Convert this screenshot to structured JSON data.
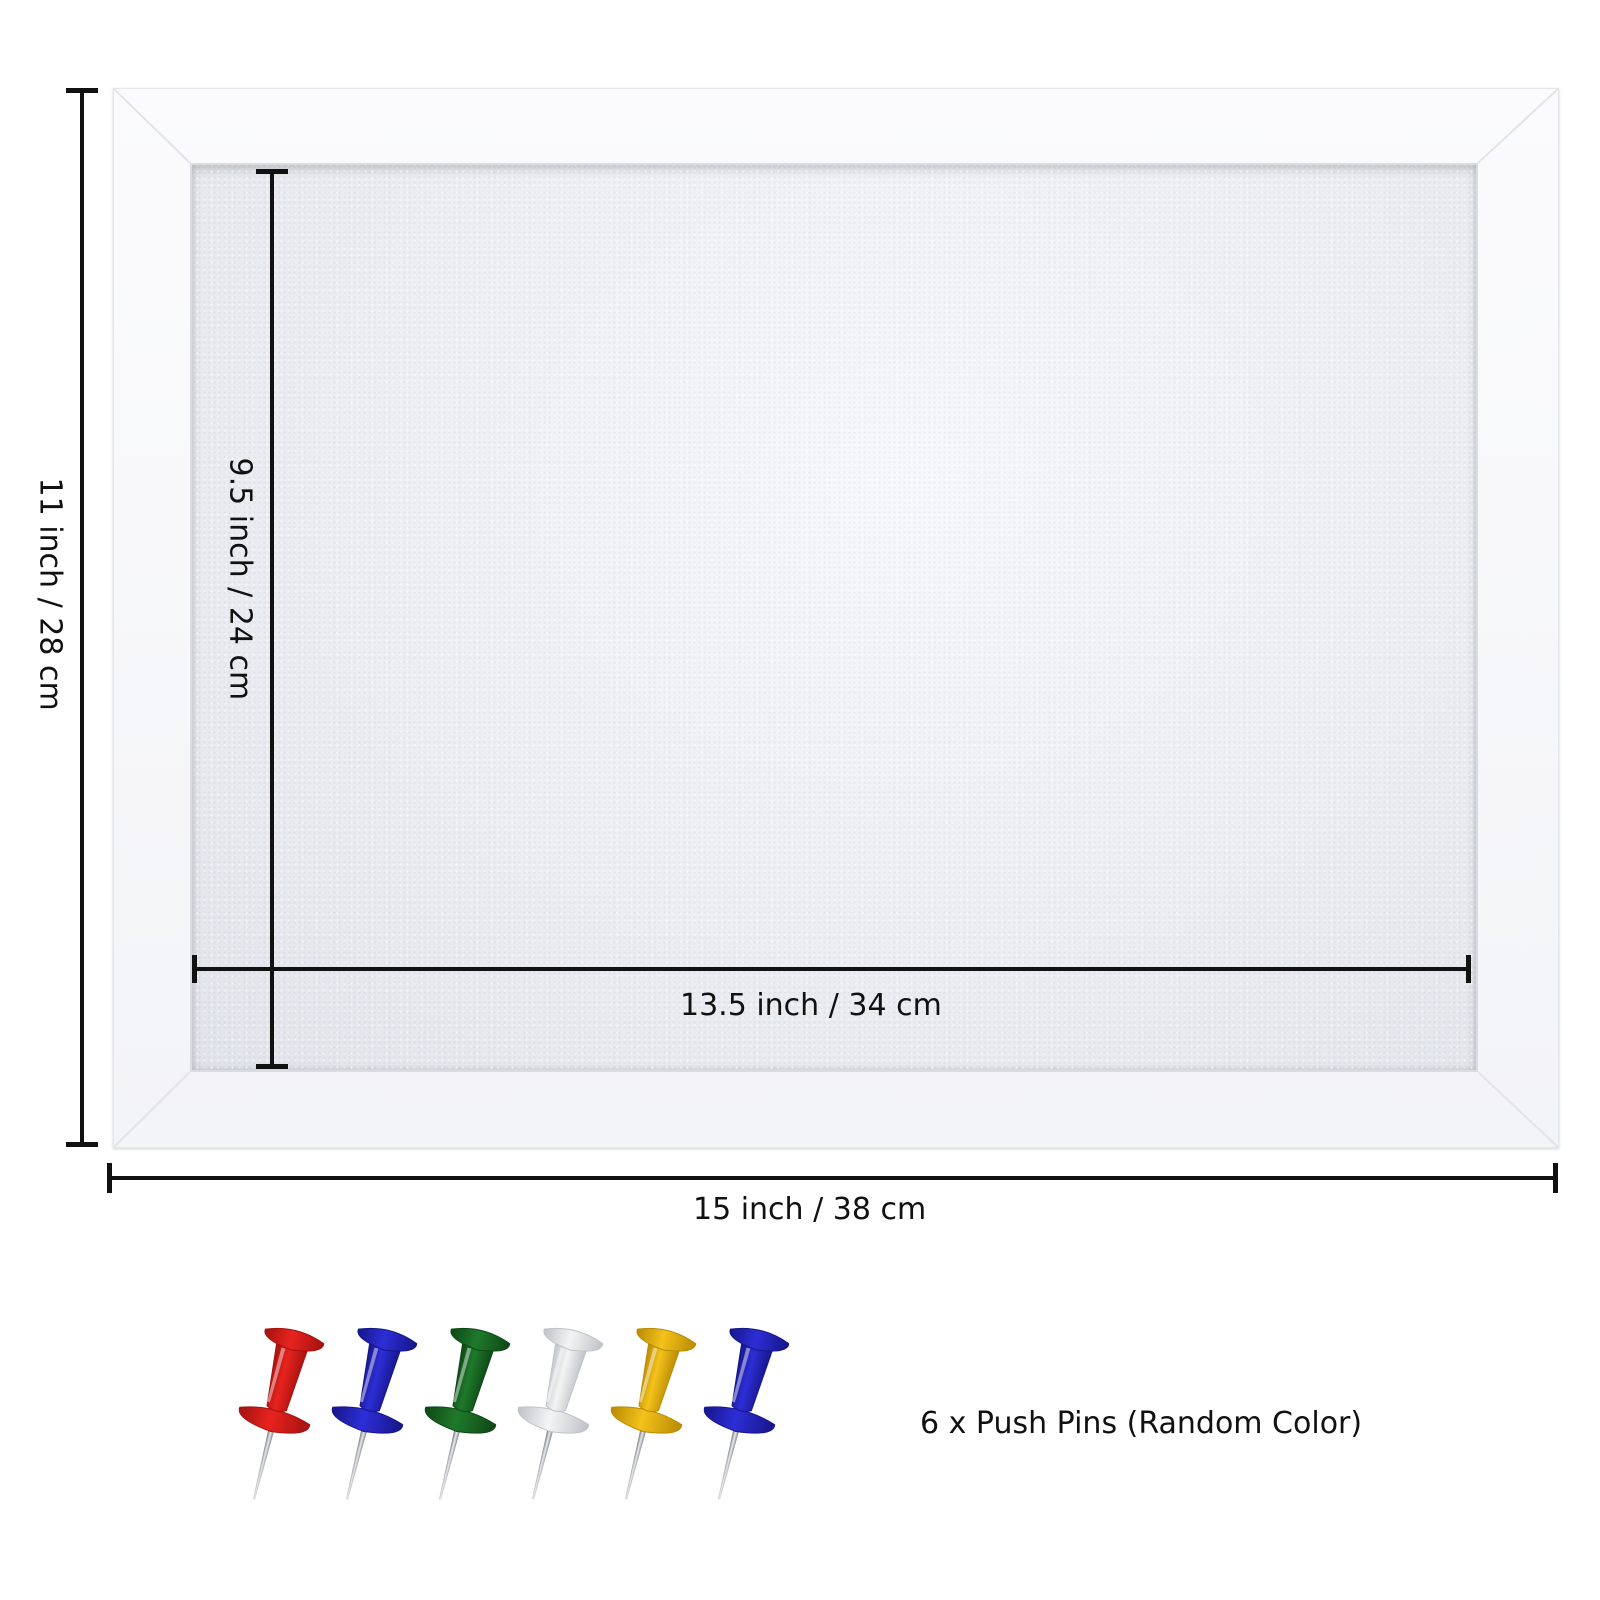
{
  "dimensions": {
    "outer_height": "11 inch / 28 cm",
    "outer_width": "15 inch / 38 cm",
    "inner_height": "9.5 inch / 24 cm",
    "inner_width": "13.5 inch / 34 cm"
  },
  "pins": {
    "caption": "6 x Push Pins (Random Color)",
    "colors": [
      {
        "name": "red-pin",
        "fill": "#e8231e",
        "dark": "#a4120f"
      },
      {
        "name": "blue-pin",
        "fill": "#2d2ed6",
        "dark": "#16168a"
      },
      {
        "name": "green-pin",
        "fill": "#1f7a2b",
        "dark": "#0e4716"
      },
      {
        "name": "white-pin",
        "fill": "#f4f4f4",
        "dark": "#bfc2c8"
      },
      {
        "name": "yellow-pin",
        "fill": "#f4c21a",
        "dark": "#b98a05"
      },
      {
        "name": "blue-pin-2",
        "fill": "#2d2ed6",
        "dark": "#16168a"
      }
    ]
  }
}
